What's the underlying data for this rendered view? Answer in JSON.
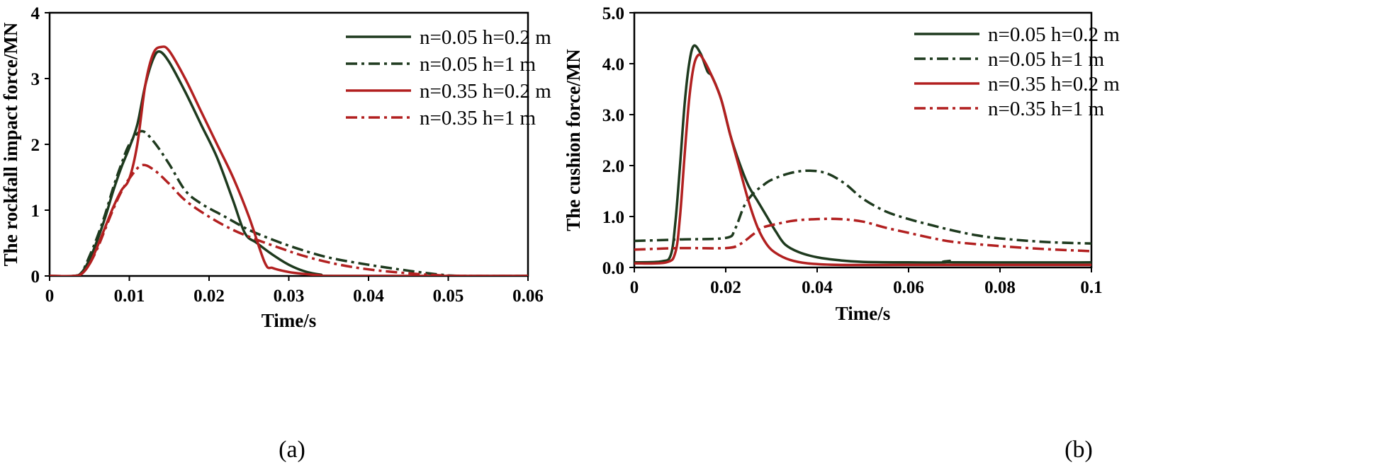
{
  "chart_data": [
    {
      "type": "line",
      "caption": "(a)",
      "xlabel": "Time/s",
      "ylabel": "The rockfall impact force/MN",
      "xlim": [
        0,
        0.06
      ],
      "ylim": [
        0,
        4
      ],
      "xticks": [
        "0",
        "0.01",
        "0.02",
        "0.03",
        "0.04",
        "0.05",
        "0.06"
      ],
      "yticks": [
        "0",
        "1",
        "2",
        "3",
        "4"
      ],
      "legend_position": "top-right",
      "series": [
        {
          "name": "n=0.05  h=0.2 m",
          "color": "#1e3a1e",
          "dash": "solid",
          "points": [
            [
              0,
              0
            ],
            [
              0.003,
              0
            ],
            [
              0.004,
              0.05
            ],
            [
              0.005,
              0.25
            ],
            [
              0.006,
              0.55
            ],
            [
              0.007,
              0.9
            ],
            [
              0.008,
              1.3
            ],
            [
              0.009,
              1.65
            ],
            [
              0.01,
              1.95
            ],
            [
              0.011,
              2.3
            ],
            [
              0.012,
              2.9
            ],
            [
              0.013,
              3.3
            ],
            [
              0.0138,
              3.41
            ],
            [
              0.015,
              3.25
            ],
            [
              0.017,
              2.8
            ],
            [
              0.019,
              2.3
            ],
            [
              0.021,
              1.8
            ],
            [
              0.023,
              1.15
            ],
            [
              0.0245,
              0.65
            ],
            [
              0.026,
              0.5
            ],
            [
              0.028,
              0.32
            ],
            [
              0.03,
              0.17
            ],
            [
              0.032,
              0.07
            ],
            [
              0.034,
              0.02
            ],
            [
              0.036,
              0
            ],
            [
              0.06,
              0
            ]
          ]
        },
        {
          "name": "n=0.05  h=1 m",
          "color": "#1e3a1e",
          "dash": "dashdot",
          "points": [
            [
              0,
              0
            ],
            [
              0.003,
              0
            ],
            [
              0.004,
              0.05
            ],
            [
              0.005,
              0.3
            ],
            [
              0.006,
              0.6
            ],
            [
              0.007,
              0.95
            ],
            [
              0.008,
              1.35
            ],
            [
              0.009,
              1.7
            ],
            [
              0.01,
              2.0
            ],
            [
              0.0115,
              2.2
            ],
            [
              0.013,
              2.05
            ],
            [
              0.015,
              1.7
            ],
            [
              0.017,
              1.3
            ],
            [
              0.019,
              1.1
            ],
            [
              0.022,
              0.9
            ],
            [
              0.025,
              0.7
            ],
            [
              0.028,
              0.55
            ],
            [
              0.031,
              0.42
            ],
            [
              0.035,
              0.28
            ],
            [
              0.04,
              0.17
            ],
            [
              0.045,
              0.08
            ],
            [
              0.049,
              0.02
            ],
            [
              0.052,
              0
            ],
            [
              0.06,
              0
            ]
          ]
        },
        {
          "name": "n=0.35  h=0.2 m",
          "color": "#b22020",
          "dash": "solid",
          "points": [
            [
              0,
              0
            ],
            [
              0.003,
              0
            ],
            [
              0.004,
              0.03
            ],
            [
              0.005,
              0.18
            ],
            [
              0.006,
              0.45
            ],
            [
              0.007,
              0.75
            ],
            [
              0.008,
              1.05
            ],
            [
              0.009,
              1.3
            ],
            [
              0.01,
              1.48
            ],
            [
              0.011,
              2.0
            ],
            [
              0.012,
              2.9
            ],
            [
              0.013,
              3.38
            ],
            [
              0.014,
              3.48
            ],
            [
              0.015,
              3.42
            ],
            [
              0.017,
              3.0
            ],
            [
              0.019,
              2.5
            ],
            [
              0.021,
              2.0
            ],
            [
              0.023,
              1.5
            ],
            [
              0.025,
              0.9
            ],
            [
              0.027,
              0.2
            ],
            [
              0.028,
              0.12
            ],
            [
              0.03,
              0.06
            ],
            [
              0.032,
              0.03
            ],
            [
              0.034,
              0.01
            ],
            [
              0.036,
              0
            ],
            [
              0.06,
              0
            ]
          ]
        },
        {
          "name": "n=0.35  h=1 m",
          "color": "#b22020",
          "dash": "dashdot",
          "points": [
            [
              0,
              0
            ],
            [
              0.003,
              0
            ],
            [
              0.004,
              0.03
            ],
            [
              0.005,
              0.18
            ],
            [
              0.006,
              0.42
            ],
            [
              0.007,
              0.72
            ],
            [
              0.008,
              1.02
            ],
            [
              0.009,
              1.28
            ],
            [
              0.01,
              1.48
            ],
            [
              0.0115,
              1.68
            ],
            [
              0.013,
              1.62
            ],
            [
              0.015,
              1.4
            ],
            [
              0.017,
              1.15
            ],
            [
              0.02,
              0.9
            ],
            [
              0.023,
              0.7
            ],
            [
              0.026,
              0.55
            ],
            [
              0.029,
              0.42
            ],
            [
              0.032,
              0.3
            ],
            [
              0.036,
              0.18
            ],
            [
              0.04,
              0.1
            ],
            [
              0.045,
              0.04
            ],
            [
              0.049,
              0.01
            ],
            [
              0.052,
              0
            ],
            [
              0.06,
              0
            ]
          ]
        }
      ]
    },
    {
      "type": "line",
      "caption": "(b)",
      "xlabel": "Time/s",
      "ylabel": "The cushion force/MN",
      "xlim": [
        0,
        0.1
      ],
      "ylim": [
        0,
        5
      ],
      "xticks": [
        "0",
        "0.02",
        "0.04",
        "0.06",
        "0.08",
        "0.1"
      ],
      "yticks": [
        "0.0",
        "1.0",
        "2.0",
        "3.0",
        "4.0",
        "5.0"
      ],
      "legend_position": "top-right",
      "series": [
        {
          "name": "n=0.05 h=0.2 m",
          "color": "#1e3a1e",
          "dash": "solid",
          "points": [
            [
              0,
              0.1
            ],
            [
              0.006,
              0.12
            ],
            [
              0.008,
              0.25
            ],
            [
              0.009,
              0.9
            ],
            [
              0.01,
              2.0
            ],
            [
              0.011,
              3.2
            ],
            [
              0.012,
              4.0
            ],
            [
              0.013,
              4.35
            ],
            [
              0.0145,
              4.2
            ],
            [
              0.016,
              3.85
            ],
            [
              0.017,
              3.75
            ],
            [
              0.019,
              3.3
            ],
            [
              0.021,
              2.6
            ],
            [
              0.023,
              2.05
            ],
            [
              0.025,
              1.6
            ],
            [
              0.027,
              1.3
            ],
            [
              0.029,
              1.0
            ],
            [
              0.031,
              0.7
            ],
            [
              0.033,
              0.45
            ],
            [
              0.036,
              0.3
            ],
            [
              0.04,
              0.2
            ],
            [
              0.045,
              0.14
            ],
            [
              0.05,
              0.11
            ],
            [
              0.06,
              0.1
            ],
            [
              0.068,
              0.1
            ],
            [
              0.069,
              0.13
            ],
            [
              0.07,
              0.1
            ],
            [
              0.1,
              0.1
            ]
          ]
        },
        {
          "name": "n=0.05 h=1 m",
          "color": "#1e3a1e",
          "dash": "dashdot",
          "points": [
            [
              0,
              0.52
            ],
            [
              0.01,
              0.55
            ],
            [
              0.02,
              0.58
            ],
            [
              0.022,
              0.75
            ],
            [
              0.024,
              1.2
            ],
            [
              0.026,
              1.45
            ],
            [
              0.028,
              1.6
            ],
            [
              0.03,
              1.72
            ],
            [
              0.034,
              1.85
            ],
            [
              0.038,
              1.9
            ],
            [
              0.042,
              1.85
            ],
            [
              0.046,
              1.65
            ],
            [
              0.05,
              1.35
            ],
            [
              0.055,
              1.1
            ],
            [
              0.06,
              0.95
            ],
            [
              0.065,
              0.83
            ],
            [
              0.07,
              0.72
            ],
            [
              0.075,
              0.63
            ],
            [
              0.08,
              0.57
            ],
            [
              0.09,
              0.5
            ],
            [
              0.1,
              0.47
            ]
          ]
        },
        {
          "name": "n=0.35 h=0.2 m",
          "color": "#b22020",
          "dash": "solid",
          "points": [
            [
              0,
              0.08
            ],
            [
              0.007,
              0.1
            ],
            [
              0.009,
              0.3
            ],
            [
              0.01,
              1.0
            ],
            [
              0.011,
              2.2
            ],
            [
              0.012,
              3.3
            ],
            [
              0.013,
              3.95
            ],
            [
              0.014,
              4.17
            ],
            [
              0.015,
              4.1
            ],
            [
              0.017,
              3.75
            ],
            [
              0.019,
              3.3
            ],
            [
              0.021,
              2.6
            ],
            [
              0.023,
              1.95
            ],
            [
              0.025,
              1.3
            ],
            [
              0.027,
              0.78
            ],
            [
              0.029,
              0.45
            ],
            [
              0.031,
              0.28
            ],
            [
              0.034,
              0.15
            ],
            [
              0.038,
              0.08
            ],
            [
              0.045,
              0.05
            ],
            [
              0.06,
              0.05
            ],
            [
              0.1,
              0.05
            ]
          ]
        },
        {
          "name": "n=0.35 h=1 m",
          "color": "#b22020",
          "dash": "dashdot",
          "points": [
            [
              0,
              0.35
            ],
            [
              0.01,
              0.38
            ],
            [
              0.02,
              0.38
            ],
            [
              0.023,
              0.45
            ],
            [
              0.026,
              0.65
            ],
            [
              0.028,
              0.78
            ],
            [
              0.031,
              0.85
            ],
            [
              0.035,
              0.92
            ],
            [
              0.04,
              0.95
            ],
            [
              0.045,
              0.95
            ],
            [
              0.05,
              0.9
            ],
            [
              0.055,
              0.78
            ],
            [
              0.06,
              0.68
            ],
            [
              0.065,
              0.58
            ],
            [
              0.07,
              0.5
            ],
            [
              0.08,
              0.42
            ],
            [
              0.09,
              0.36
            ],
            [
              0.1,
              0.32
            ]
          ]
        }
      ]
    }
  ]
}
